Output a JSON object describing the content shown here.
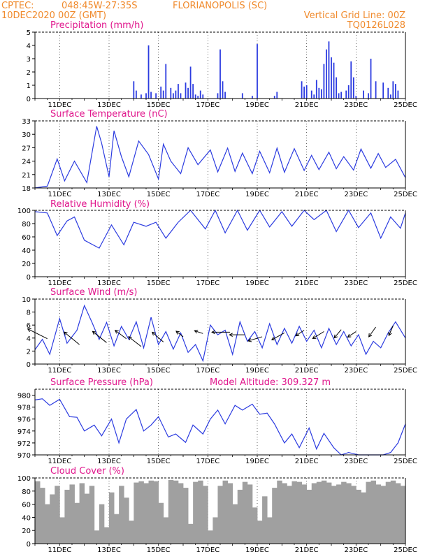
{
  "header": {
    "source": "CPTEC:",
    "coords": "048:45W-27:35S",
    "location": "FLORIANOPOLIS (SC)",
    "init_time": "10DEC2020 00Z (GMT)",
    "grid_note": "Vertical Grid Line: 00Z",
    "model": "TQ0126L028"
  },
  "x_tick_labels": [
    "11DEC",
    "13DEC",
    "15DEC",
    "17DEC",
    "19DEC",
    "21DEC",
    "23DEC",
    "25DEC"
  ],
  "colors": {
    "line": "#2b3be0",
    "bars": "#2b3be0",
    "cloud": "#a0a0a0",
    "title": "#e0168c",
    "header": "#f08a2c"
  },
  "chart_data": [
    {
      "type": "bar",
      "title": "Precipitation (mm/h)",
      "x_unit": "days since 10DEC2020 00Z",
      "ylim": [
        0,
        5
      ],
      "yticks": [
        0,
        1,
        2,
        3,
        4,
        5
      ],
      "x": [
        4.0,
        4.1,
        4.3,
        4.5,
        4.6,
        4.7,
        4.9,
        5.1,
        5.2,
        5.3,
        5.5,
        5.6,
        5.7,
        5.8,
        5.9,
        6.1,
        6.2,
        6.3,
        6.4,
        6.5,
        6.6,
        6.7,
        6.8,
        7.4,
        7.5,
        7.6,
        7.7,
        8.4,
        8.8,
        9.0,
        9.7,
        9.8,
        10.8,
        10.9,
        11.0,
        11.2,
        11.3,
        11.4,
        11.5,
        11.6,
        11.7,
        11.8,
        11.9,
        12.0,
        12.1,
        12.2,
        12.3,
        12.4,
        12.6,
        12.7,
        12.8,
        12.9,
        13.0,
        13.3,
        13.5,
        13.6,
        13.8,
        14.1,
        14.3,
        14.4,
        14.5,
        14.6,
        14.7
      ],
      "values": [
        1.3,
        0.6,
        0.3,
        0.4,
        4.0,
        0.5,
        0.4,
        0.9,
        0.6,
        2.6,
        0.8,
        0.4,
        0.6,
        1.1,
        0.4,
        1.2,
        0.8,
        2.4,
        1.1,
        0.3,
        0.2,
        0.6,
        0.3,
        0.4,
        3.7,
        1.3,
        0.5,
        0.4,
        0.2,
        4.1,
        0.2,
        0.5,
        1.3,
        0.9,
        1.0,
        0.6,
        0.3,
        1.4,
        0.8,
        0.7,
        2.6,
        3.7,
        4.3,
        3.1,
        2.7,
        1.6,
        0.4,
        0.5,
        0.6,
        1.0,
        2.8,
        1.6,
        0.2,
        0.6,
        0.4,
        3.0,
        1.3,
        1.2,
        0.8,
        0.3,
        1.3,
        1.1,
        0.6
      ]
    },
    {
      "type": "line",
      "title": "Surface Temperature (nC)",
      "x_unit": "days since 10DEC2020 00Z",
      "ylim": [
        18,
        33
      ],
      "yticks": [
        18,
        21,
        24,
        27,
        30,
        33
      ],
      "x": [
        0.0,
        0.5,
        0.9,
        1.2,
        1.6,
        2.1,
        2.5,
        2.7,
        3.0,
        3.2,
        3.5,
        3.8,
        4.2,
        4.6,
        5.0,
        5.2,
        5.5,
        5.9,
        6.2,
        6.6,
        7.1,
        7.4,
        7.8,
        8.1,
        8.4,
        8.8,
        9.1,
        9.5,
        9.8,
        10.1,
        10.5,
        10.9,
        11.2,
        11.5,
        11.9,
        12.2,
        12.5,
        12.9,
        13.2,
        13.6,
        13.9,
        14.2,
        14.6,
        15.0
      ],
      "values": [
        17.8,
        18.4,
        24.5,
        19.6,
        24.0,
        19.2,
        31.8,
        28.0,
        20.5,
        30.8,
        25.0,
        20.5,
        28.5,
        25.5,
        20.0,
        27.8,
        24.0,
        21.2,
        27.0,
        23.2,
        26.5,
        21.6,
        26.9,
        21.7,
        25.8,
        21.2,
        26.2,
        21.4,
        26.9,
        21.5,
        26.8,
        21.9,
        25.3,
        22.1,
        26.0,
        22.3,
        25.0,
        22.0,
        26.7,
        22.4,
        25.7,
        22.6,
        24.4,
        20.3
      ]
    },
    {
      "type": "line",
      "title": "Relative Humidity (%)",
      "x_unit": "days since 10DEC2020 00Z",
      "ylim": [
        0,
        100
      ],
      "yticks": [
        0,
        20,
        40,
        60,
        80,
        100
      ],
      "x": [
        0.0,
        0.5,
        0.9,
        1.3,
        1.6,
        2.0,
        2.6,
        3.1,
        3.6,
        4.0,
        4.5,
        4.9,
        5.3,
        5.8,
        6.3,
        6.9,
        7.3,
        7.7,
        8.2,
        8.6,
        9.1,
        9.5,
        10.0,
        10.4,
        10.9,
        11.3,
        11.8,
        12.2,
        12.7,
        13.1,
        13.6,
        14.0,
        14.4,
        14.8,
        15.0
      ],
      "values": [
        98,
        96,
        62,
        84,
        90,
        55,
        43,
        78,
        48,
        82,
        76,
        82,
        58,
        82,
        100,
        72,
        100,
        66,
        100,
        70,
        100,
        75,
        98,
        76,
        100,
        86,
        100,
        68,
        100,
        74,
        96,
        58,
        90,
        73,
        96
      ]
    },
    {
      "type": "line",
      "title": "Surface Wind (m/s)",
      "x_unit": "days since 10DEC2020 00Z",
      "ylim": [
        0,
        10
      ],
      "yticks": [
        0,
        2,
        4,
        6,
        8,
        10
      ],
      "x": [
        0.0,
        0.3,
        0.6,
        1.0,
        1.3,
        1.7,
        2.0,
        2.3,
        2.6,
        2.9,
        3.2,
        3.5,
        3.8,
        4.1,
        4.4,
        4.7,
        5.0,
        5.3,
        5.6,
        5.9,
        6.2,
        6.5,
        6.8,
        7.1,
        7.4,
        7.7,
        8.0,
        8.3,
        8.6,
        8.9,
        9.2,
        9.5,
        9.8,
        10.1,
        10.4,
        10.7,
        11.0,
        11.3,
        11.6,
        11.9,
        12.2,
        12.5,
        12.8,
        13.1,
        13.4,
        13.7,
        14.0,
        14.3,
        14.6,
        15.0
      ],
      "values": [
        2.2,
        3.8,
        1.5,
        7.0,
        3.2,
        5.2,
        9.0,
        6.5,
        3.8,
        6.4,
        2.8,
        5.8,
        3.8,
        6.5,
        2.5,
        7.2,
        3.0,
        5.0,
        2.3,
        4.8,
        1.8,
        3.0,
        0.5,
        6.0,
        4.5,
        5.2,
        1.5,
        6.5,
        3.5,
        5.0,
        2.5,
        6.2,
        3.0,
        5.5,
        3.2,
        5.8,
        3.5,
        5.2,
        2.5,
        5.5,
        3.0,
        5.0,
        2.8,
        4.5,
        1.5,
        3.5,
        2.5,
        4.8,
        6.5,
        4.0
      ],
      "wind_barbs_shown": true
    },
    {
      "type": "line",
      "title": "Surface Pressure (hPa)",
      "annotation": "Model Altitude: 309.327 m",
      "x_unit": "days since 10DEC2020 00Z",
      "ylim": [
        970,
        981
      ],
      "yticks": [
        970,
        972,
        974,
        976,
        978,
        980
      ],
      "x": [
        0.0,
        0.3,
        0.6,
        1.0,
        1.4,
        1.7,
        2.0,
        2.4,
        2.7,
        3.1,
        3.4,
        3.7,
        4.1,
        4.4,
        4.7,
        5.0,
        5.4,
        5.7,
        6.1,
        6.4,
        6.8,
        7.1,
        7.4,
        7.7,
        8.1,
        8.4,
        8.8,
        9.1,
        9.4,
        9.7,
        10.1,
        10.4,
        10.7,
        11.1,
        11.4,
        11.7,
        12.1,
        12.4,
        12.7,
        13.1,
        13.4,
        13.7,
        14.1,
        14.4,
        14.7,
        15.0
      ],
      "values": [
        979.2,
        979.4,
        978.3,
        979.3,
        976.4,
        976.3,
        974.0,
        975.0,
        973.2,
        976.0,
        972.0,
        976.0,
        977.6,
        974.0,
        975.0,
        976.4,
        973.0,
        973.5,
        972.1,
        975.0,
        973.5,
        976.0,
        977.5,
        975.2,
        978.3,
        977.5,
        978.5,
        976.8,
        977.0,
        975.2,
        972.0,
        973.5,
        971.2,
        974.5,
        971.0,
        973.6,
        971.2,
        969.5,
        970.4,
        969.0,
        969.5,
        969.2,
        968.5,
        970.4,
        972.0,
        975.2
      ]
    },
    {
      "type": "bar",
      "title": "Cloud Cover (%)",
      "x_unit": "days since 10DEC2020 00Z",
      "ylim": [
        0,
        100
      ],
      "yticks": [
        0,
        20,
        40,
        60,
        80,
        100
      ],
      "x": [
        0.0,
        0.2,
        0.4,
        0.6,
        0.8,
        1.0,
        1.2,
        1.4,
        1.6,
        1.8,
        2.0,
        2.2,
        2.4,
        2.6,
        2.8,
        3.0,
        3.2,
        3.4,
        3.6,
        3.8,
        4.0,
        4.2,
        4.4,
        4.6,
        4.8,
        5.0,
        5.2,
        5.4,
        5.6,
        5.8,
        6.0,
        6.2,
        6.4,
        6.6,
        6.8,
        7.0,
        7.2,
        7.4,
        7.6,
        7.8,
        8.0,
        8.2,
        8.4,
        8.6,
        8.8,
        9.0,
        9.2,
        9.4,
        9.6,
        9.8,
        10.0,
        10.2,
        10.4,
        10.6,
        10.8,
        11.0,
        11.2,
        11.4,
        11.6,
        11.8,
        12.0,
        12.2,
        12.4,
        12.6,
        12.8,
        13.0,
        13.2,
        13.4,
        13.6,
        13.8,
        14.0,
        14.2,
        14.4,
        14.6,
        14.8
      ],
      "values": [
        95,
        85,
        60,
        75,
        88,
        40,
        82,
        90,
        62,
        92,
        76,
        88,
        20,
        60,
        25,
        78,
        45,
        88,
        70,
        35,
        93,
        95,
        92,
        96,
        95,
        62,
        40,
        97,
        96,
        92,
        85,
        30,
        94,
        96,
        88,
        20,
        40,
        88,
        96,
        92,
        60,
        82,
        94,
        90,
        55,
        35,
        72,
        40,
        85,
        96,
        92,
        88,
        95,
        94,
        90,
        82,
        92,
        94,
        96,
        93,
        88,
        90,
        94,
        92,
        88,
        82,
        78,
        94,
        96,
        90,
        88,
        94,
        96,
        92,
        88
      ]
    }
  ]
}
